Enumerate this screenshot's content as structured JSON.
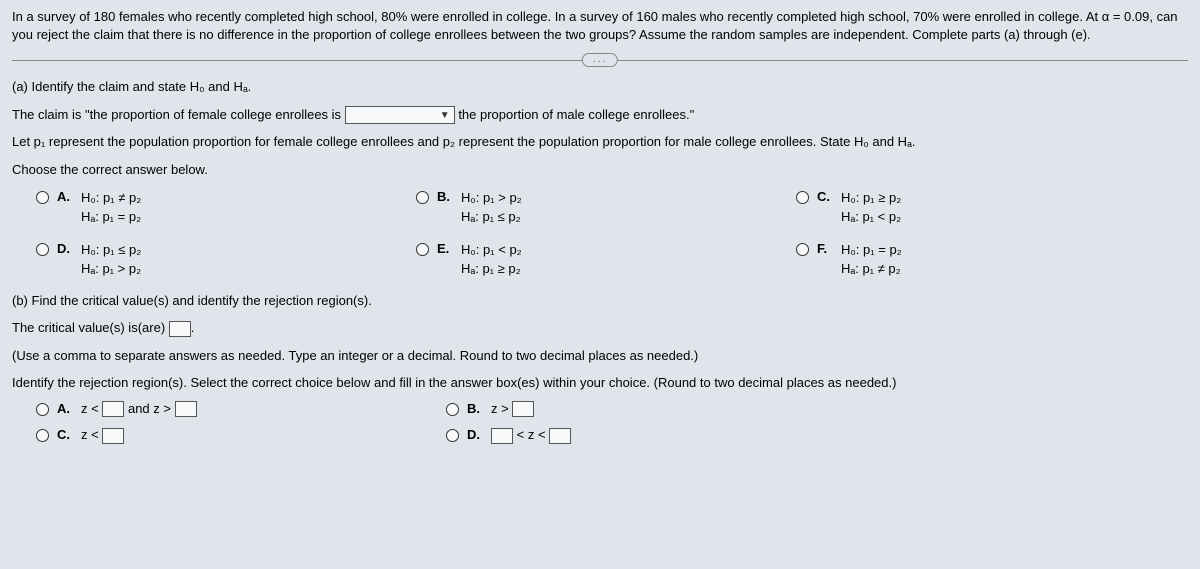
{
  "intro": "In a survey of 180 females who recently completed high school, 80% were enrolled in college. In a survey of 160 males who recently completed high school, 70% were enrolled in college. At α = 0.09, can you reject the claim that there is no difference in the proportion of college enrollees between the two groups? Assume the random samples are independent. Complete parts (a) through (e).",
  "ellipsis": "...",
  "part_a_label": "(a) Identify the claim and state H₀ and Hₐ.",
  "claim_pre": "The claim is \"the proportion of female college enrollees is",
  "claim_dropdown": "",
  "claim_post": "the proportion of  male college enrollees.\"",
  "let_line": "Let p₁ represent the population proportion for female college enrollees and p₂ represent the population proportion for male college enrollees. State H₀ and Hₐ.",
  "choose_label": "Choose the correct answer below.",
  "hyp_options": [
    {
      "letter": "A.",
      "h0": "H₀: p₁ ≠ p₂",
      "ha": "Hₐ: p₁ = p₂"
    },
    {
      "letter": "B.",
      "h0": "H₀: p₁ > p₂",
      "ha": "Hₐ: p₁ ≤ p₂"
    },
    {
      "letter": "C.",
      "h0": "H₀: p₁ ≥ p₂",
      "ha": "Hₐ: p₁ < p₂"
    },
    {
      "letter": "D.",
      "h0": "H₀: p₁ ≤ p₂",
      "ha": "Hₐ: p₁ > p₂"
    },
    {
      "letter": "E.",
      "h0": "H₀: p₁ < p₂",
      "ha": "Hₐ: p₁ ≥ p₂"
    },
    {
      "letter": "F.",
      "h0": "H₀: p₁ = p₂",
      "ha": "Hₐ: p₁ ≠ p₂"
    }
  ],
  "part_b_label": "(b) Find the critical value(s) and identify the rejection region(s).",
  "cv_pre": "The critical value(s) is(are) ",
  "cv_post": ".",
  "cv_hint": "(Use a comma to separate answers as needed. Type an integer or a decimal. Round to two decimal places as needed.)",
  "rr_label": "Identify the rejection region(s). Select the correct choice below and fill in the answer box(es) within your choice. (Round to two decimal places as needed.)",
  "rr_options": {
    "A": {
      "letter": "A.",
      "pre": "z <",
      "mid": " and z >"
    },
    "B": {
      "letter": "B.",
      "pre": "z >"
    },
    "C": {
      "letter": "C.",
      "pre": "z <"
    },
    "D": {
      "letter": "D.",
      "mid": "< z <"
    }
  },
  "colors": {
    "background": "#dfe5eb",
    "text": "#000000",
    "border": "#555555",
    "divider": "#888888"
  }
}
